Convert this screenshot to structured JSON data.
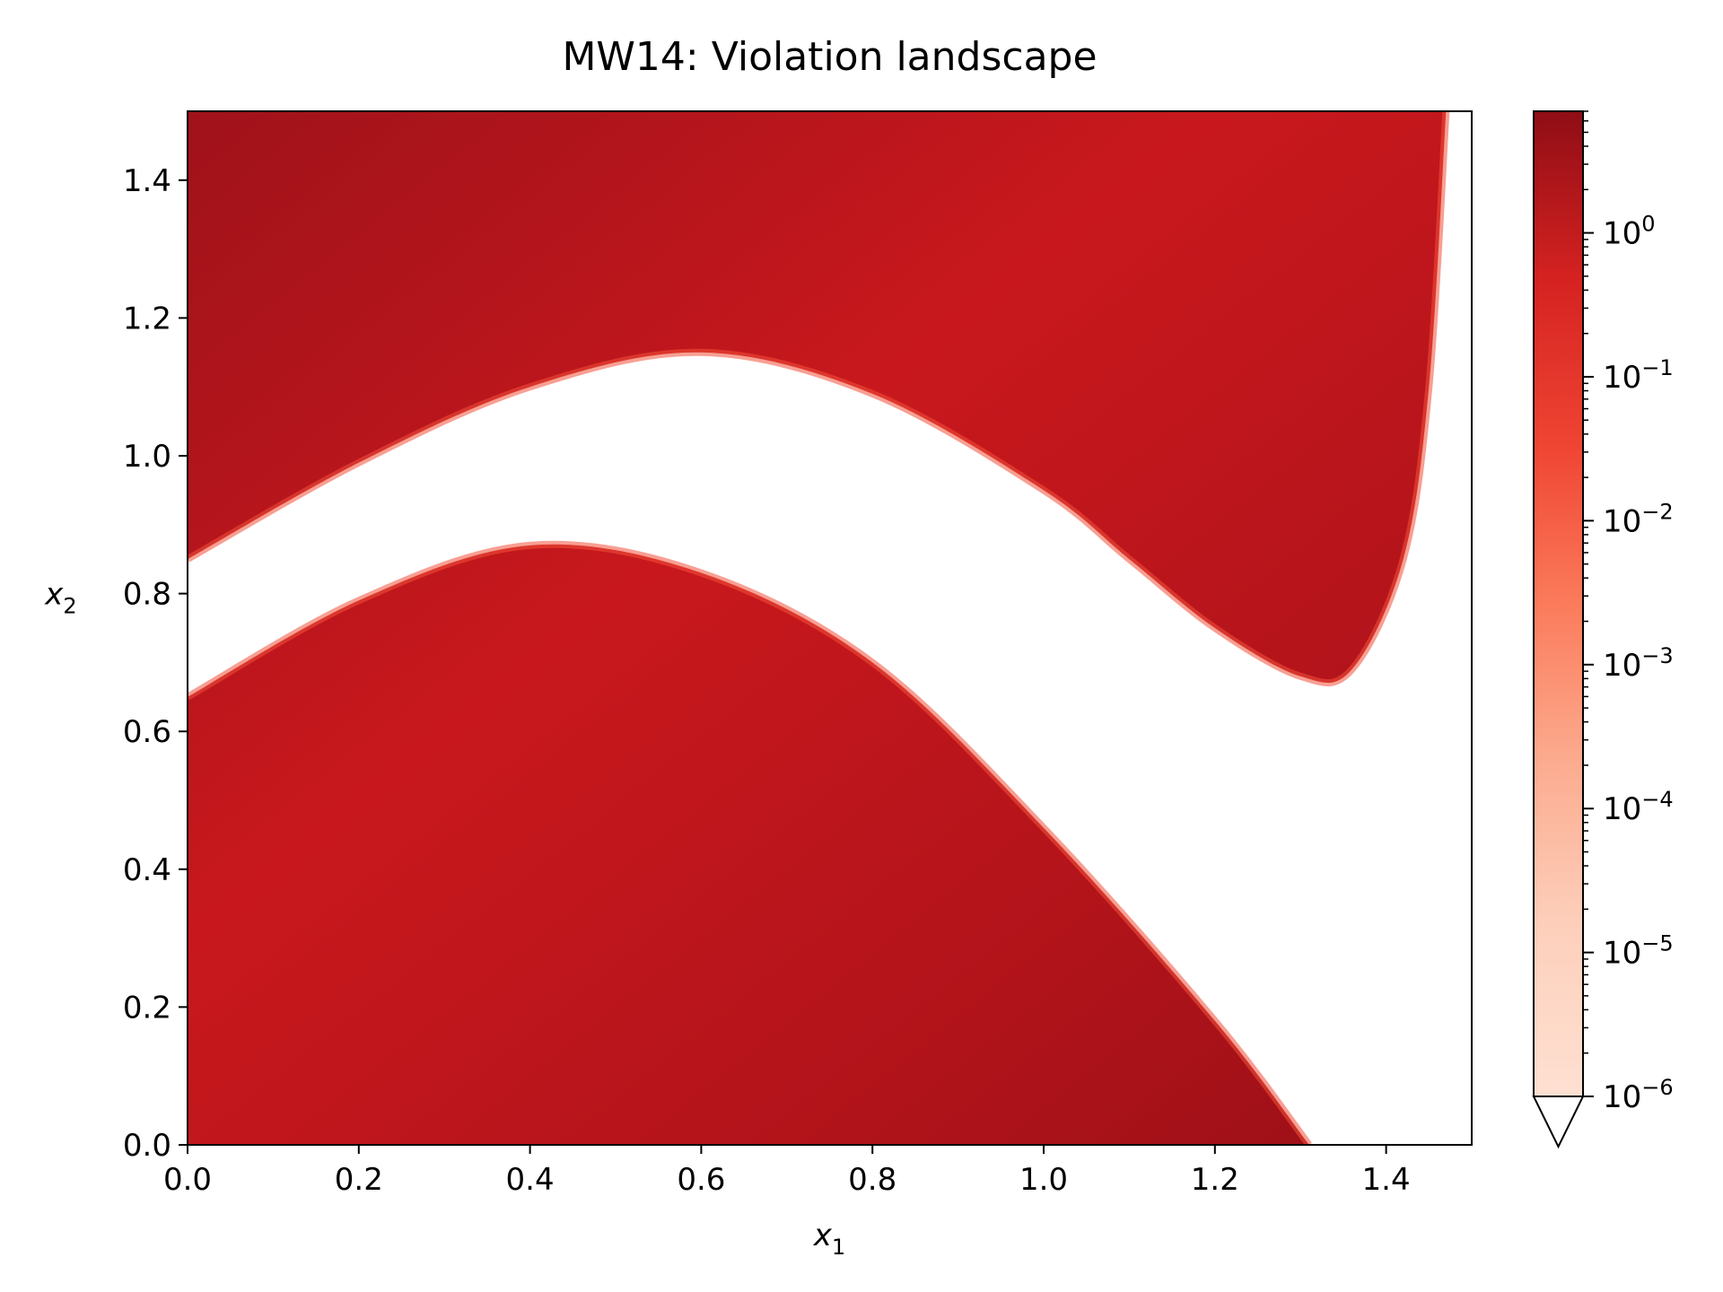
{
  "chart_data": {
    "type": "heatmap",
    "title": "MW14: Violation landscape",
    "xlabel": "x",
    "xlabel_sub": "1",
    "ylabel": "x",
    "ylabel_sub": "2",
    "xlim": [
      0.0,
      1.5
    ],
    "ylim": [
      0.0,
      1.5
    ],
    "x_ticks": [
      0.0,
      0.2,
      0.4,
      0.6,
      0.8,
      1.0,
      1.2,
      1.4
    ],
    "x_tick_labels": [
      "0.0",
      "0.2",
      "0.4",
      "0.6",
      "0.8",
      "1.0",
      "1.2",
      "1.4"
    ],
    "y_ticks": [
      0.0,
      0.2,
      0.4,
      0.6,
      0.8,
      1.0,
      1.2,
      1.4
    ],
    "y_tick_labels": [
      "0.0",
      "0.2",
      "0.4",
      "0.6",
      "0.8",
      "1.0",
      "1.2",
      "1.4"
    ],
    "colormap": "Reds",
    "colorbar": {
      "scale": "log",
      "range": [
        1e-06,
        7
      ],
      "extend": "min",
      "ticks": [
        {
          "value": 1e-06,
          "base": "10",
          "exp": "−6"
        },
        {
          "value": 1e-05,
          "base": "10",
          "exp": "−5"
        },
        {
          "value": 0.0001,
          "base": "10",
          "exp": "−4"
        },
        {
          "value": 0.001,
          "base": "10",
          "exp": "−3"
        },
        {
          "value": 0.01,
          "base": "10",
          "exp": "−2"
        },
        {
          "value": 0.1,
          "base": "10",
          "exp": "−1"
        },
        {
          "value": 1,
          "base": "10",
          "exp": "0"
        }
      ]
    },
    "feasible_region_color": "#ffffff",
    "violation_color_dark": "#980d14",
    "violation_color_mid": "#cf1a1e",
    "violation_color_edge": "#f2503a",
    "upper_feasible_boundary": [
      [
        0.0,
        0.85
      ],
      [
        0.2,
        0.99
      ],
      [
        0.4,
        1.1
      ],
      [
        0.6,
        1.15
      ],
      [
        0.8,
        1.09
      ],
      [
        1.0,
        0.95
      ],
      [
        1.1,
        0.85
      ],
      [
        1.2,
        0.75
      ],
      [
        1.3,
        0.68
      ],
      [
        1.36,
        0.69
      ],
      [
        1.42,
        0.85
      ],
      [
        1.45,
        1.1
      ],
      [
        1.47,
        1.5
      ]
    ],
    "lower_feasible_boundary": [
      [
        0.0,
        0.65
      ],
      [
        0.2,
        0.79
      ],
      [
        0.4,
        0.87
      ],
      [
        0.6,
        0.83
      ],
      [
        0.8,
        0.7
      ],
      [
        1.0,
        0.46
      ],
      [
        1.2,
        0.18
      ],
      [
        1.31,
        0.0
      ]
    ]
  }
}
